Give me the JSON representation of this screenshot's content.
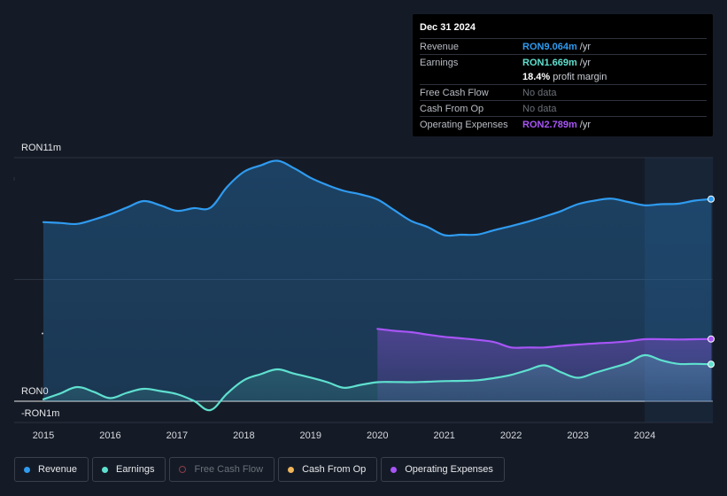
{
  "tooltip": {
    "date": "Dec 31 2024",
    "revenue_label": "Revenue",
    "revenue_value": "RON9.064m",
    "revenue_unit": "/yr",
    "earnings_label": "Earnings",
    "earnings_value": "RON1.669m",
    "earnings_unit": "/yr",
    "margin_value": "18.4%",
    "margin_text": "profit margin",
    "fcf_label": "Free Cash Flow",
    "fcf_value": "No data",
    "cfo_label": "Cash From Op",
    "cfo_value": "No data",
    "opex_label": "Operating Expenses",
    "opex_value": "RON2.789m",
    "opex_unit": "/yr"
  },
  "legend": {
    "revenue": "Revenue",
    "earnings": "Earnings",
    "fcf": "Free Cash Flow",
    "cfo": "Cash From Op",
    "opex": "Operating Expenses"
  },
  "colors": {
    "revenue": "#2f9bf0",
    "earnings": "#5fe0cf",
    "opex": "#a855f7",
    "cfo": "#f0b45a",
    "fcf": "#e05a6f",
    "background": "#151b26"
  },
  "chart_data": {
    "type": "area",
    "y_axis_labels": [
      "RON11m",
      "RON0",
      "-RON1m"
    ],
    "ylim": [
      -1,
      11
    ],
    "x_ticks": [
      "2015",
      "2016",
      "2017",
      "2018",
      "2019",
      "2020",
      "2021",
      "2022",
      "2023",
      "2024"
    ],
    "x_tick_values": [
      2015,
      2016,
      2017,
      2018,
      2019,
      2020,
      2021,
      2022,
      2023,
      2024
    ],
    "xlim": [
      2014.58,
      2025.0
    ],
    "highlight_from": 2024.0,
    "series": [
      {
        "name": "Revenue",
        "key": "revenue",
        "x": [
          2015.0,
          2015.25,
          2015.5,
          2015.75,
          2016.0,
          2016.25,
          2016.5,
          2016.75,
          2017.0,
          2017.25,
          2017.5,
          2017.75,
          2018.0,
          2018.25,
          2018.5,
          2018.75,
          2019.0,
          2019.25,
          2019.5,
          2019.75,
          2020.0,
          2020.25,
          2020.5,
          2020.75,
          2021.0,
          2021.25,
          2021.5,
          2021.75,
          2022.0,
          2022.25,
          2022.5,
          2022.75,
          2023.0,
          2023.25,
          2023.5,
          2023.75,
          2024.0,
          2024.25,
          2024.5,
          2024.75,
          2025.0
        ],
        "values": [
          8.09,
          8.05,
          8.01,
          8.2,
          8.45,
          8.75,
          9.04,
          8.85,
          8.6,
          8.72,
          8.74,
          9.68,
          10.36,
          10.65,
          10.86,
          10.53,
          10.09,
          9.76,
          9.5,
          9.34,
          9.11,
          8.63,
          8.15,
          7.87,
          7.5,
          7.52,
          7.53,
          7.73,
          7.91,
          8.11,
          8.34,
          8.59,
          8.9,
          9.06,
          9.15,
          9.0,
          8.85,
          8.9,
          8.92,
          9.06,
          9.13
        ]
      },
      {
        "name": "Earnings",
        "key": "earnings",
        "x": [
          2015.0,
          2015.25,
          2015.5,
          2015.75,
          2016.0,
          2016.25,
          2016.5,
          2016.75,
          2017.0,
          2017.25,
          2017.5,
          2017.75,
          2018.0,
          2018.25,
          2018.5,
          2018.75,
          2019.0,
          2019.25,
          2019.5,
          2019.75,
          2020.0,
          2020.25,
          2020.5,
          2020.75,
          2021.0,
          2021.25,
          2021.5,
          2021.75,
          2022.0,
          2022.25,
          2022.5,
          2022.75,
          2023.0,
          2023.25,
          2023.5,
          2023.75,
          2024.0,
          2024.25,
          2024.5,
          2024.75,
          2025.0
        ],
        "values": [
          0.09,
          0.35,
          0.64,
          0.43,
          0.14,
          0.38,
          0.56,
          0.46,
          0.32,
          0.02,
          -0.4,
          0.35,
          0.95,
          1.22,
          1.44,
          1.25,
          1.07,
          0.86,
          0.61,
          0.74,
          0.86,
          0.87,
          0.86,
          0.88,
          0.91,
          0.92,
          0.95,
          1.05,
          1.19,
          1.41,
          1.62,
          1.31,
          1.06,
          1.28,
          1.5,
          1.73,
          2.08,
          1.85,
          1.69,
          1.69,
          1.67
        ]
      },
      {
        "name": "Operating Expenses",
        "key": "opex",
        "x": [
          2020.0,
          2020.25,
          2020.5,
          2020.75,
          2021.0,
          2021.25,
          2021.5,
          2021.75,
          2022.0,
          2022.25,
          2022.5,
          2022.75,
          2023.0,
          2023.25,
          2023.5,
          2023.75,
          2024.0,
          2024.25,
          2024.5,
          2024.75,
          2025.0
        ],
        "values": [
          3.27,
          3.18,
          3.12,
          3.01,
          2.91,
          2.84,
          2.77,
          2.67,
          2.43,
          2.43,
          2.43,
          2.5,
          2.56,
          2.61,
          2.65,
          2.71,
          2.8,
          2.8,
          2.79,
          2.8,
          2.81
        ]
      }
    ]
  }
}
